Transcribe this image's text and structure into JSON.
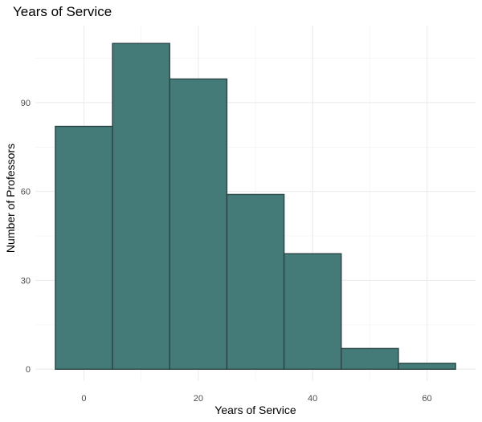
{
  "chart_data": {
    "type": "bar",
    "title": "Years of Service",
    "xlabel": "Years of Service",
    "ylabel": "Number of Professors",
    "bins": [
      {
        "from": -5,
        "to": 5,
        "count": 82
      },
      {
        "from": 5,
        "to": 15,
        "count": 110
      },
      {
        "from": 15,
        "to": 25,
        "count": 98
      },
      {
        "from": 25,
        "to": 35,
        "count": 59
      },
      {
        "from": 35,
        "to": 45,
        "count": 39
      },
      {
        "from": 45,
        "to": 55,
        "count": 7
      },
      {
        "from": 55,
        "to": 65,
        "count": 2
      }
    ],
    "xlim": [
      -8.5,
      68.5
    ],
    "ylim": [
      -4,
      116
    ],
    "x_ticks": [
      0,
      20,
      40,
      60
    ],
    "y_ticks": [
      0,
      30,
      60,
      90
    ],
    "x_tick_labels": [
      "0",
      "20",
      "40",
      "60"
    ],
    "y_tick_labels": [
      "0",
      "30",
      "60",
      "90"
    ],
    "grid": true,
    "legend": "none",
    "bar_fill": "#447b78",
    "bar_stroke": "#2a4446",
    "background": "#ffffff"
  }
}
